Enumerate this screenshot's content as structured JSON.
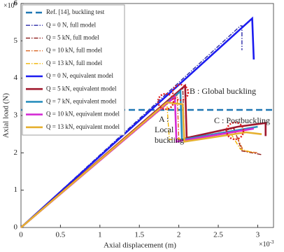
{
  "chart_data": {
    "type": "line",
    "x_label": "Axial displacement (m)",
    "y_label": "Axial load (N)",
    "x_multiplier": {
      "base": "×10",
      "exponent": "-3"
    },
    "y_multiplier": {
      "base": "×10",
      "exponent": "6"
    },
    "xlim": [
      0,
      3.2
    ],
    "ylim": [
      0,
      6
    ],
    "xticks": [
      0,
      0.5,
      1,
      1.5,
      2,
      2.5,
      3
    ],
    "yticks": [
      0,
      1,
      2,
      3,
      4,
      5,
      6
    ],
    "legend": "upper left",
    "series": [
      {
        "name": "Ref. [14], buckling test",
        "color": "#1f77b4",
        "dash": "dashed",
        "x": [
          0,
          3.2
        ],
        "values": [
          3.15,
          3.15
        ]
      },
      {
        "name": "Q = 0 N, full model",
        "color": "#2a2aa8",
        "dash": "dashdot",
        "x": [
          0,
          2.78,
          2.8,
          2.8
        ],
        "values": [
          0,
          5.4,
          5.4,
          4.75
        ]
      },
      {
        "name": "Q = 5 kN, full model",
        "color": "#8b1a1a",
        "dash": "dashdot",
        "x": [
          0,
          2.05,
          2.07,
          2.7,
          2.8,
          3.05
        ],
        "values": [
          0,
          3.75,
          2.4,
          2.65,
          2.05,
          1.95
        ]
      },
      {
        "name": "Q = 10 kN, full model",
        "color": "#d9621e",
        "dash": "dashdot",
        "x": [
          0,
          1.98,
          2.0,
          2.7,
          2.82,
          3.0
        ],
        "values": [
          0,
          3.55,
          2.35,
          2.6,
          2.05,
          2.0
        ]
      },
      {
        "name": "Q = 13 kN, full model",
        "color": "#f0b400",
        "dash": "dashdot",
        "x": [
          0,
          1.85,
          1.88,
          2.65,
          2.78,
          2.95
        ],
        "values": [
          0,
          3.3,
          2.35,
          2.55,
          2.1,
          2.0
        ]
      },
      {
        "name": "Q = 0 N, equivalent model",
        "color": "#1c1cf0",
        "dash": "solid",
        "x": [
          0,
          2.93,
          2.95
        ],
        "values": [
          0,
          5.6,
          4.5
        ]
      },
      {
        "name": "Q = 5 kN, equivalent model",
        "color": "#a0182e",
        "dash": "solid",
        "x": [
          0,
          2.08,
          2.1,
          2.75,
          3.1,
          3.1
        ],
        "values": [
          0,
          3.8,
          2.4,
          2.7,
          2.8,
          2.45
        ]
      },
      {
        "name": "Q = 7 kN, equivalent model",
        "color": "#2a8fbd",
        "dash": "solid",
        "x": [
          0,
          2.02,
          2.04,
          3.0
        ],
        "values": [
          0,
          3.65,
          2.35,
          2.7
        ]
      },
      {
        "name": "Q = 10 kN, equivalent model",
        "color": "#d42bd4",
        "dash": "solid",
        "x": [
          0,
          1.95,
          1.97,
          2.95
        ],
        "values": [
          0,
          3.5,
          2.3,
          2.65
        ]
      },
      {
        "name": "Q = 13 kN, equivalent model",
        "color": "#e6b030",
        "dash": "solid",
        "x": [
          0,
          1.85,
          2.05,
          2.07,
          2.85,
          3.05
        ],
        "values": [
          0,
          3.35,
          3.3,
          2.3,
          2.55,
          2.5
        ]
      }
    ],
    "annotations": [
      {
        "lines": [
          "A :",
          "Local",
          "buckling"
        ]
      },
      {
        "lines": [
          "B : Global buckling"
        ]
      },
      {
        "lines": [
          "C : Postbuckling"
        ]
      }
    ]
  }
}
